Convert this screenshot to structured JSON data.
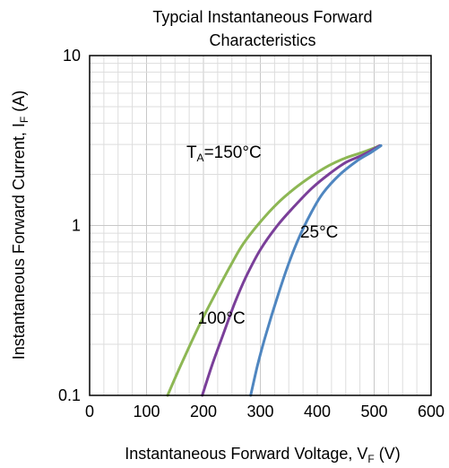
{
  "chart_data": {
    "type": "line",
    "title_line1": "Typcial Instantaneous Forward",
    "title_line2": "Characteristics",
    "x_axis": {
      "label_main": "Instantaneous Forward Voltage, V",
      "label_sub": "F",
      "label_unit": " (V)",
      "range": [
        0,
        600
      ],
      "ticks": [
        "0",
        "100",
        "200",
        "300",
        "400",
        "500",
        "600"
      ]
    },
    "y_axis": {
      "label_main": "Instantaneous Forward Current, I",
      "label_sub": "F",
      "label_unit": " (A)",
      "scale": "log",
      "range": [
        0.1,
        10
      ],
      "ticks": [
        "0.1",
        "1",
        "10"
      ]
    },
    "grid": true,
    "series": [
      {
        "color": "#8db754",
        "points": [
          [
            137,
            0.1
          ],
          [
            160,
            0.15
          ],
          [
            180,
            0.21
          ],
          [
            200,
            0.29
          ],
          [
            225,
            0.42
          ],
          [
            250,
            0.6
          ],
          [
            270,
            0.78
          ],
          [
            300,
            1.05
          ],
          [
            330,
            1.35
          ],
          [
            360,
            1.65
          ],
          [
            390,
            1.95
          ],
          [
            420,
            2.25
          ],
          [
            450,
            2.5
          ],
          [
            480,
            2.7
          ],
          [
            510,
            2.95
          ]
        ]
      },
      {
        "color": "#7a3f99",
        "points": [
          [
            198,
            0.1
          ],
          [
            215,
            0.15
          ],
          [
            235,
            0.23
          ],
          [
            255,
            0.35
          ],
          [
            275,
            0.5
          ],
          [
            300,
            0.72
          ],
          [
            330,
            1.0
          ],
          [
            360,
            1.3
          ],
          [
            390,
            1.65
          ],
          [
            420,
            2.0
          ],
          [
            450,
            2.35
          ],
          [
            480,
            2.6
          ],
          [
            510,
            2.95
          ]
        ]
      },
      {
        "color": "#4f86c0",
        "points": [
          [
            283,
            0.1
          ],
          [
            295,
            0.15
          ],
          [
            310,
            0.23
          ],
          [
            330,
            0.38
          ],
          [
            350,
            0.6
          ],
          [
            370,
            0.88
          ],
          [
            390,
            1.2
          ],
          [
            410,
            1.55
          ],
          [
            440,
            2.0
          ],
          [
            470,
            2.4
          ],
          [
            495,
            2.7
          ],
          [
            512,
            2.95
          ]
        ]
      }
    ],
    "annotations": [
      {
        "label_prefix": "T",
        "label_sub": "A",
        "label_rest": "=150°C",
        "x": 170,
        "y": 2.5
      },
      {
        "label_prefix": "100°C",
        "label_sub": "",
        "label_rest": "",
        "x": 190,
        "y": 0.265
      },
      {
        "label_prefix": "25°C",
        "label_sub": "",
        "label_rest": "",
        "x": 370,
        "y": 0.85
      }
    ]
  }
}
